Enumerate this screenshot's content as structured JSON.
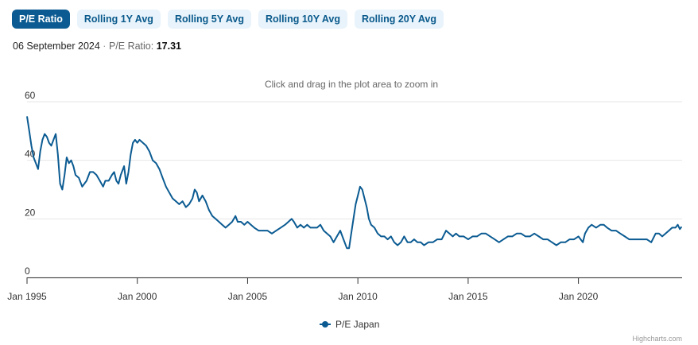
{
  "tabs": [
    {
      "label": "P/E Ratio",
      "active": true
    },
    {
      "label": "Rolling 1Y Avg",
      "active": false
    },
    {
      "label": "Rolling 5Y Avg",
      "active": false
    },
    {
      "label": "Rolling 10Y Avg",
      "active": false
    },
    {
      "label": "Rolling 20Y Avg",
      "active": false
    }
  ],
  "info": {
    "date": "06 September 2024",
    "separator": "·",
    "metric_label": "P/E Ratio:",
    "metric_value": "17.31"
  },
  "credits": "Highcharts.com",
  "colors": {
    "series": "#0b5b92",
    "grid": "#e6e6e6",
    "axis": "#333333",
    "tab_active": "#0b5b92",
    "tab_inactive": "#e8f3fb"
  },
  "chart_data": {
    "type": "line",
    "title": "",
    "subtitle": "Click and drag in the plot area to zoom in",
    "xlabel": "",
    "ylabel": "",
    "xlim": [
      1995.0,
      2024.7
    ],
    "ylim": [
      0,
      60
    ],
    "y_ticks": [
      0,
      20,
      40,
      60
    ],
    "x_ticks": [
      {
        "label": "Jan 1995",
        "value": 1995
      },
      {
        "label": "Jan 2000",
        "value": 2000
      },
      {
        "label": "Jan 2005",
        "value": 2005
      },
      {
        "label": "Jan 2010",
        "value": 2010
      },
      {
        "label": "Jan 2015",
        "value": 2015
      },
      {
        "label": "Jan 2020",
        "value": 2020
      }
    ],
    "grid": true,
    "legend": "bottom-center",
    "series": [
      {
        "name": "P/E Japan",
        "points": [
          [
            1995.0,
            55
          ],
          [
            1995.1,
            50
          ],
          [
            1995.2,
            45
          ],
          [
            1995.3,
            41
          ],
          [
            1995.4,
            39
          ],
          [
            1995.5,
            37
          ],
          [
            1995.6,
            43
          ],
          [
            1995.7,
            47
          ],
          [
            1995.8,
            49
          ],
          [
            1995.9,
            48
          ],
          [
            1996.0,
            46
          ],
          [
            1996.1,
            45
          ],
          [
            1996.2,
            47
          ],
          [
            1996.3,
            49
          ],
          [
            1996.4,
            42
          ],
          [
            1996.5,
            32
          ],
          [
            1996.6,
            30
          ],
          [
            1996.7,
            35
          ],
          [
            1996.8,
            41
          ],
          [
            1996.9,
            39
          ],
          [
            1997.0,
            40
          ],
          [
            1997.1,
            38
          ],
          [
            1997.2,
            35
          ],
          [
            1997.35,
            34
          ],
          [
            1997.5,
            31
          ],
          [
            1997.7,
            33
          ],
          [
            1997.85,
            36
          ],
          [
            1998.0,
            36
          ],
          [
            1998.15,
            35
          ],
          [
            1998.3,
            33
          ],
          [
            1998.45,
            31
          ],
          [
            1998.55,
            33
          ],
          [
            1998.7,
            33
          ],
          [
            1998.85,
            35
          ],
          [
            1998.95,
            36
          ],
          [
            1999.05,
            33
          ],
          [
            1999.15,
            32
          ],
          [
            1999.25,
            35
          ],
          [
            1999.4,
            38
          ],
          [
            1999.5,
            32
          ],
          [
            1999.6,
            36
          ],
          [
            1999.7,
            42
          ],
          [
            1999.8,
            46
          ],
          [
            1999.9,
            47
          ],
          [
            2000.0,
            46
          ],
          [
            2000.1,
            47
          ],
          [
            2000.25,
            46
          ],
          [
            2000.4,
            45
          ],
          [
            2000.55,
            43
          ],
          [
            2000.7,
            40
          ],
          [
            2000.85,
            39
          ],
          [
            2001.0,
            37
          ],
          [
            2001.15,
            34
          ],
          [
            2001.3,
            31
          ],
          [
            2001.45,
            29
          ],
          [
            2001.6,
            27
          ],
          [
            2001.75,
            26
          ],
          [
            2001.9,
            25
          ],
          [
            2002.05,
            26
          ],
          [
            2002.2,
            24
          ],
          [
            2002.35,
            25
          ],
          [
            2002.5,
            27
          ],
          [
            2002.6,
            30
          ],
          [
            2002.7,
            29
          ],
          [
            2002.8,
            26
          ],
          [
            2002.95,
            28
          ],
          [
            2003.1,
            26
          ],
          [
            2003.25,
            23
          ],
          [
            2003.4,
            21
          ],
          [
            2003.55,
            20
          ],
          [
            2003.7,
            19
          ],
          [
            2003.85,
            18
          ],
          [
            2004.0,
            17
          ],
          [
            2004.15,
            18
          ],
          [
            2004.3,
            19
          ],
          [
            2004.45,
            21
          ],
          [
            2004.55,
            19
          ],
          [
            2004.7,
            19
          ],
          [
            2004.85,
            18
          ],
          [
            2005.0,
            19
          ],
          [
            2005.15,
            18
          ],
          [
            2005.3,
            17
          ],
          [
            2005.5,
            16
          ],
          [
            2005.7,
            16
          ],
          [
            2005.9,
            16
          ],
          [
            2006.1,
            15
          ],
          [
            2006.3,
            16
          ],
          [
            2006.5,
            17
          ],
          [
            2006.7,
            18
          ],
          [
            2006.85,
            19
          ],
          [
            2007.0,
            20
          ],
          [
            2007.1,
            19
          ],
          [
            2007.25,
            17
          ],
          [
            2007.4,
            18
          ],
          [
            2007.55,
            17
          ],
          [
            2007.7,
            18
          ],
          [
            2007.85,
            17
          ],
          [
            2008.0,
            17
          ],
          [
            2008.15,
            17
          ],
          [
            2008.3,
            18
          ],
          [
            2008.45,
            16
          ],
          [
            2008.6,
            15
          ],
          [
            2008.75,
            14
          ],
          [
            2008.9,
            12
          ],
          [
            2009.05,
            14
          ],
          [
            2009.2,
            16
          ],
          [
            2009.35,
            13
          ],
          [
            2009.5,
            10
          ],
          [
            2009.6,
            10
          ],
          [
            2009.7,
            15
          ],
          [
            2009.8,
            20
          ],
          [
            2009.9,
            25
          ],
          [
            2010.0,
            28
          ],
          [
            2010.1,
            31
          ],
          [
            2010.2,
            30
          ],
          [
            2010.3,
            27
          ],
          [
            2010.4,
            24
          ],
          [
            2010.5,
            20
          ],
          [
            2010.6,
            18
          ],
          [
            2010.75,
            17
          ],
          [
            2010.9,
            15
          ],
          [
            2011.05,
            14
          ],
          [
            2011.2,
            14
          ],
          [
            2011.35,
            13
          ],
          [
            2011.5,
            14
          ],
          [
            2011.65,
            12
          ],
          [
            2011.8,
            11
          ],
          [
            2011.95,
            12
          ],
          [
            2012.1,
            14
          ],
          [
            2012.25,
            12
          ],
          [
            2012.4,
            12
          ],
          [
            2012.55,
            13
          ],
          [
            2012.7,
            12
          ],
          [
            2012.85,
            12
          ],
          [
            2013.0,
            11
          ],
          [
            2013.2,
            12
          ],
          [
            2013.4,
            12
          ],
          [
            2013.6,
            13
          ],
          [
            2013.8,
            13
          ],
          [
            2014.0,
            16
          ],
          [
            2014.15,
            15
          ],
          [
            2014.3,
            14
          ],
          [
            2014.45,
            15
          ],
          [
            2014.6,
            14
          ],
          [
            2014.8,
            14
          ],
          [
            2015.0,
            13
          ],
          [
            2015.2,
            14
          ],
          [
            2015.4,
            14
          ],
          [
            2015.6,
            15
          ],
          [
            2015.8,
            15
          ],
          [
            2016.0,
            14
          ],
          [
            2016.2,
            13
          ],
          [
            2016.4,
            12
          ],
          [
            2016.6,
            13
          ],
          [
            2016.8,
            14
          ],
          [
            2017.0,
            14
          ],
          [
            2017.2,
            15
          ],
          [
            2017.4,
            15
          ],
          [
            2017.6,
            14
          ],
          [
            2017.8,
            14
          ],
          [
            2018.0,
            15
          ],
          [
            2018.2,
            14
          ],
          [
            2018.4,
            13
          ],
          [
            2018.6,
            13
          ],
          [
            2018.8,
            12
          ],
          [
            2019.0,
            11
          ],
          [
            2019.2,
            12
          ],
          [
            2019.4,
            12
          ],
          [
            2019.6,
            13
          ],
          [
            2019.8,
            13
          ],
          [
            2020.0,
            14
          ],
          [
            2020.1,
            13
          ],
          [
            2020.2,
            12
          ],
          [
            2020.3,
            15
          ],
          [
            2020.45,
            17
          ],
          [
            2020.6,
            18
          ],
          [
            2020.8,
            17
          ],
          [
            2021.0,
            18
          ],
          [
            2021.15,
            18
          ],
          [
            2021.3,
            17
          ],
          [
            2021.5,
            16
          ],
          [
            2021.7,
            16
          ],
          [
            2021.9,
            15
          ],
          [
            2022.1,
            14
          ],
          [
            2022.3,
            13
          ],
          [
            2022.5,
            13
          ],
          [
            2022.7,
            13
          ],
          [
            2022.9,
            13
          ],
          [
            2023.1,
            13
          ],
          [
            2023.3,
            12
          ],
          [
            2023.5,
            15
          ],
          [
            2023.65,
            15
          ],
          [
            2023.8,
            14
          ],
          [
            2023.95,
            15
          ],
          [
            2024.1,
            16
          ],
          [
            2024.25,
            17
          ],
          [
            2024.4,
            17
          ],
          [
            2024.5,
            18
          ],
          [
            2024.6,
            16.5
          ],
          [
            2024.68,
            17.31
          ]
        ]
      }
    ]
  }
}
